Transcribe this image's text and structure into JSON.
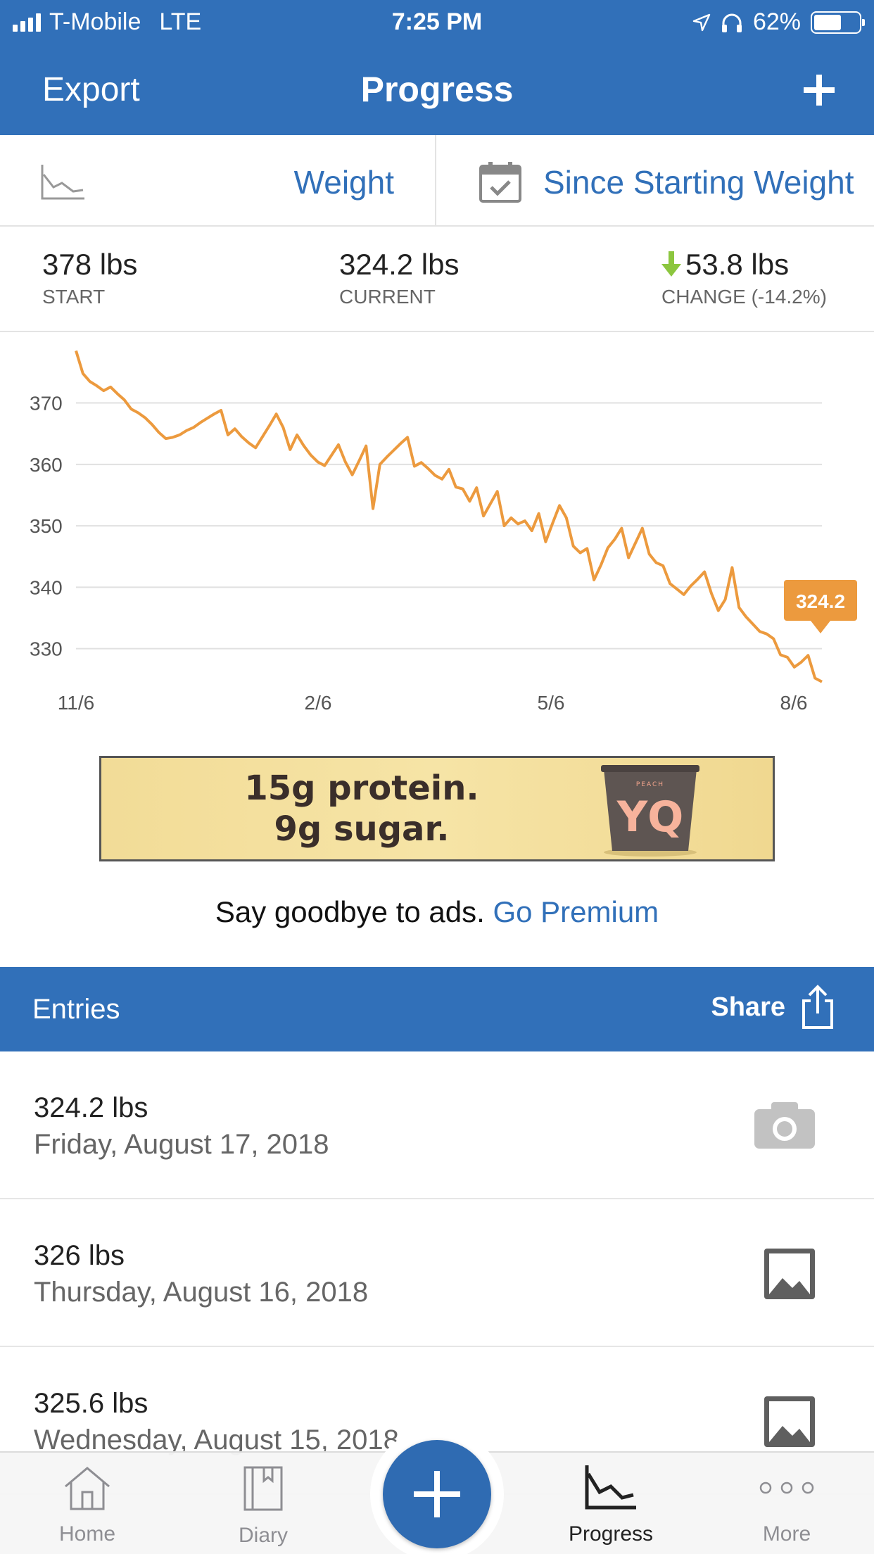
{
  "status_bar": {
    "carrier": "T-Mobile",
    "network": "LTE",
    "time": "7:25 PM",
    "battery": "62%",
    "battery_level": 0.62
  },
  "nav": {
    "export_label": "Export",
    "title": "Progress"
  },
  "filters": {
    "metric": "Weight",
    "range": "Since Starting Weight"
  },
  "stats": {
    "start_value": "378 lbs",
    "start_label": "START",
    "current_value": "324.2 lbs",
    "current_label": "CURRENT",
    "change_value": "53.8 lbs",
    "change_label": "CHANGE (-14.2%)"
  },
  "chart_data": {
    "type": "line",
    "title": "",
    "xlabel": "",
    "ylabel": "",
    "ylim": [
      324,
      379
    ],
    "y_ticks": [
      "370",
      "360",
      "350",
      "340",
      "330"
    ],
    "x_ticks": [
      "11/6",
      "2/6",
      "5/6",
      "8/6"
    ],
    "grid": true,
    "line_color": "#ec9a3e",
    "callout": "324.2",
    "series": [
      {
        "values": [
          378.5,
          374.8,
          373.5,
          372.8,
          372.0,
          372.6,
          371.5,
          370.5,
          369.0,
          368.4,
          367.6,
          366.5,
          365.2,
          364.2,
          364.4,
          364.8,
          365.5,
          366.0,
          366.8,
          367.5,
          368.2,
          368.8,
          364.8,
          365.8,
          364.5,
          363.5,
          362.7,
          364.5,
          366.3,
          368.2,
          366.0,
          362.4,
          364.8,
          363.0,
          361.5,
          360.4,
          359.8,
          361.5,
          363.2,
          360.4,
          358.3,
          360.6,
          363.0,
          352.8,
          360.0,
          361.2,
          362.3,
          363.4,
          364.4,
          359.7,
          360.3,
          359.3,
          358.2,
          357.6,
          359.2,
          356.3,
          356.0,
          354.0,
          356.2,
          351.6,
          353.6,
          355.6,
          350.0,
          351.3,
          350.3,
          350.8,
          349.2,
          352.0,
          347.4,
          350.4,
          353.3,
          351.3,
          346.7,
          345.6,
          346.3,
          341.2,
          343.6,
          346.4,
          347.8,
          349.6,
          344.8,
          347.2,
          349.6,
          345.4,
          344.0,
          343.5,
          340.6,
          339.7,
          338.8,
          340.2,
          341.3,
          342.5,
          339.0,
          336.2,
          338.0,
          343.2,
          336.7,
          335.2,
          334.0,
          332.8,
          332.4,
          331.6,
          329.0,
          328.6,
          327.0,
          327.8,
          328.9,
          325.2,
          324.6
        ]
      }
    ]
  },
  "ad": {
    "line1": "15g protein.",
    "line2": "9g sugar.",
    "cup_flavor": "PEACH",
    "cup_brand": "YQ"
  },
  "premium": {
    "text": "Say goodbye to ads.",
    "link": "Go Premium"
  },
  "entries": {
    "header": "Entries",
    "share_label": "Share",
    "items": [
      {
        "weight": "324.2 lbs",
        "date": "Friday, August 17, 2018",
        "photo": "camera-icon"
      },
      {
        "weight": "326 lbs",
        "date": "Thursday, August 16, 2018",
        "photo": "image-icon"
      },
      {
        "weight": "325.6 lbs",
        "date": "Wednesday, August 15, 2018",
        "photo": "image-icon"
      }
    ]
  },
  "tabs": [
    {
      "label": "Home",
      "icon": "home-icon"
    },
    {
      "label": "Diary",
      "icon": "book-icon"
    },
    {
      "label": "Progress",
      "icon": "chart-icon",
      "active": true
    },
    {
      "label": "More",
      "icon": "more-icon"
    }
  ],
  "colors": {
    "brand_blue": "#3170b9",
    "chart_orange": "#ec9a3e",
    "down_arrow_green": "#8cc63f"
  }
}
